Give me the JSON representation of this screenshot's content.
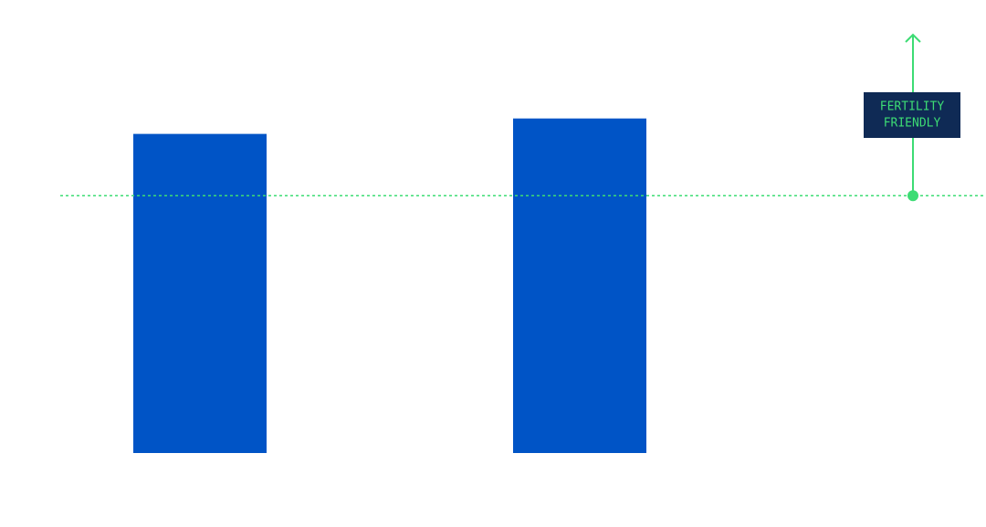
{
  "chart_data": {
    "type": "bar",
    "categories": [
      null,
      null
    ],
    "values": [
      124,
      130
    ],
    "color": "#0054c6",
    "ylim": [
      0,
      170
    ],
    "threshold": 100,
    "threshold_color": "#3ddc74",
    "annotation": {
      "lines": [
        "FERTILITY",
        "FRIENDLY"
      ],
      "background": "#0f2a55"
    }
  }
}
